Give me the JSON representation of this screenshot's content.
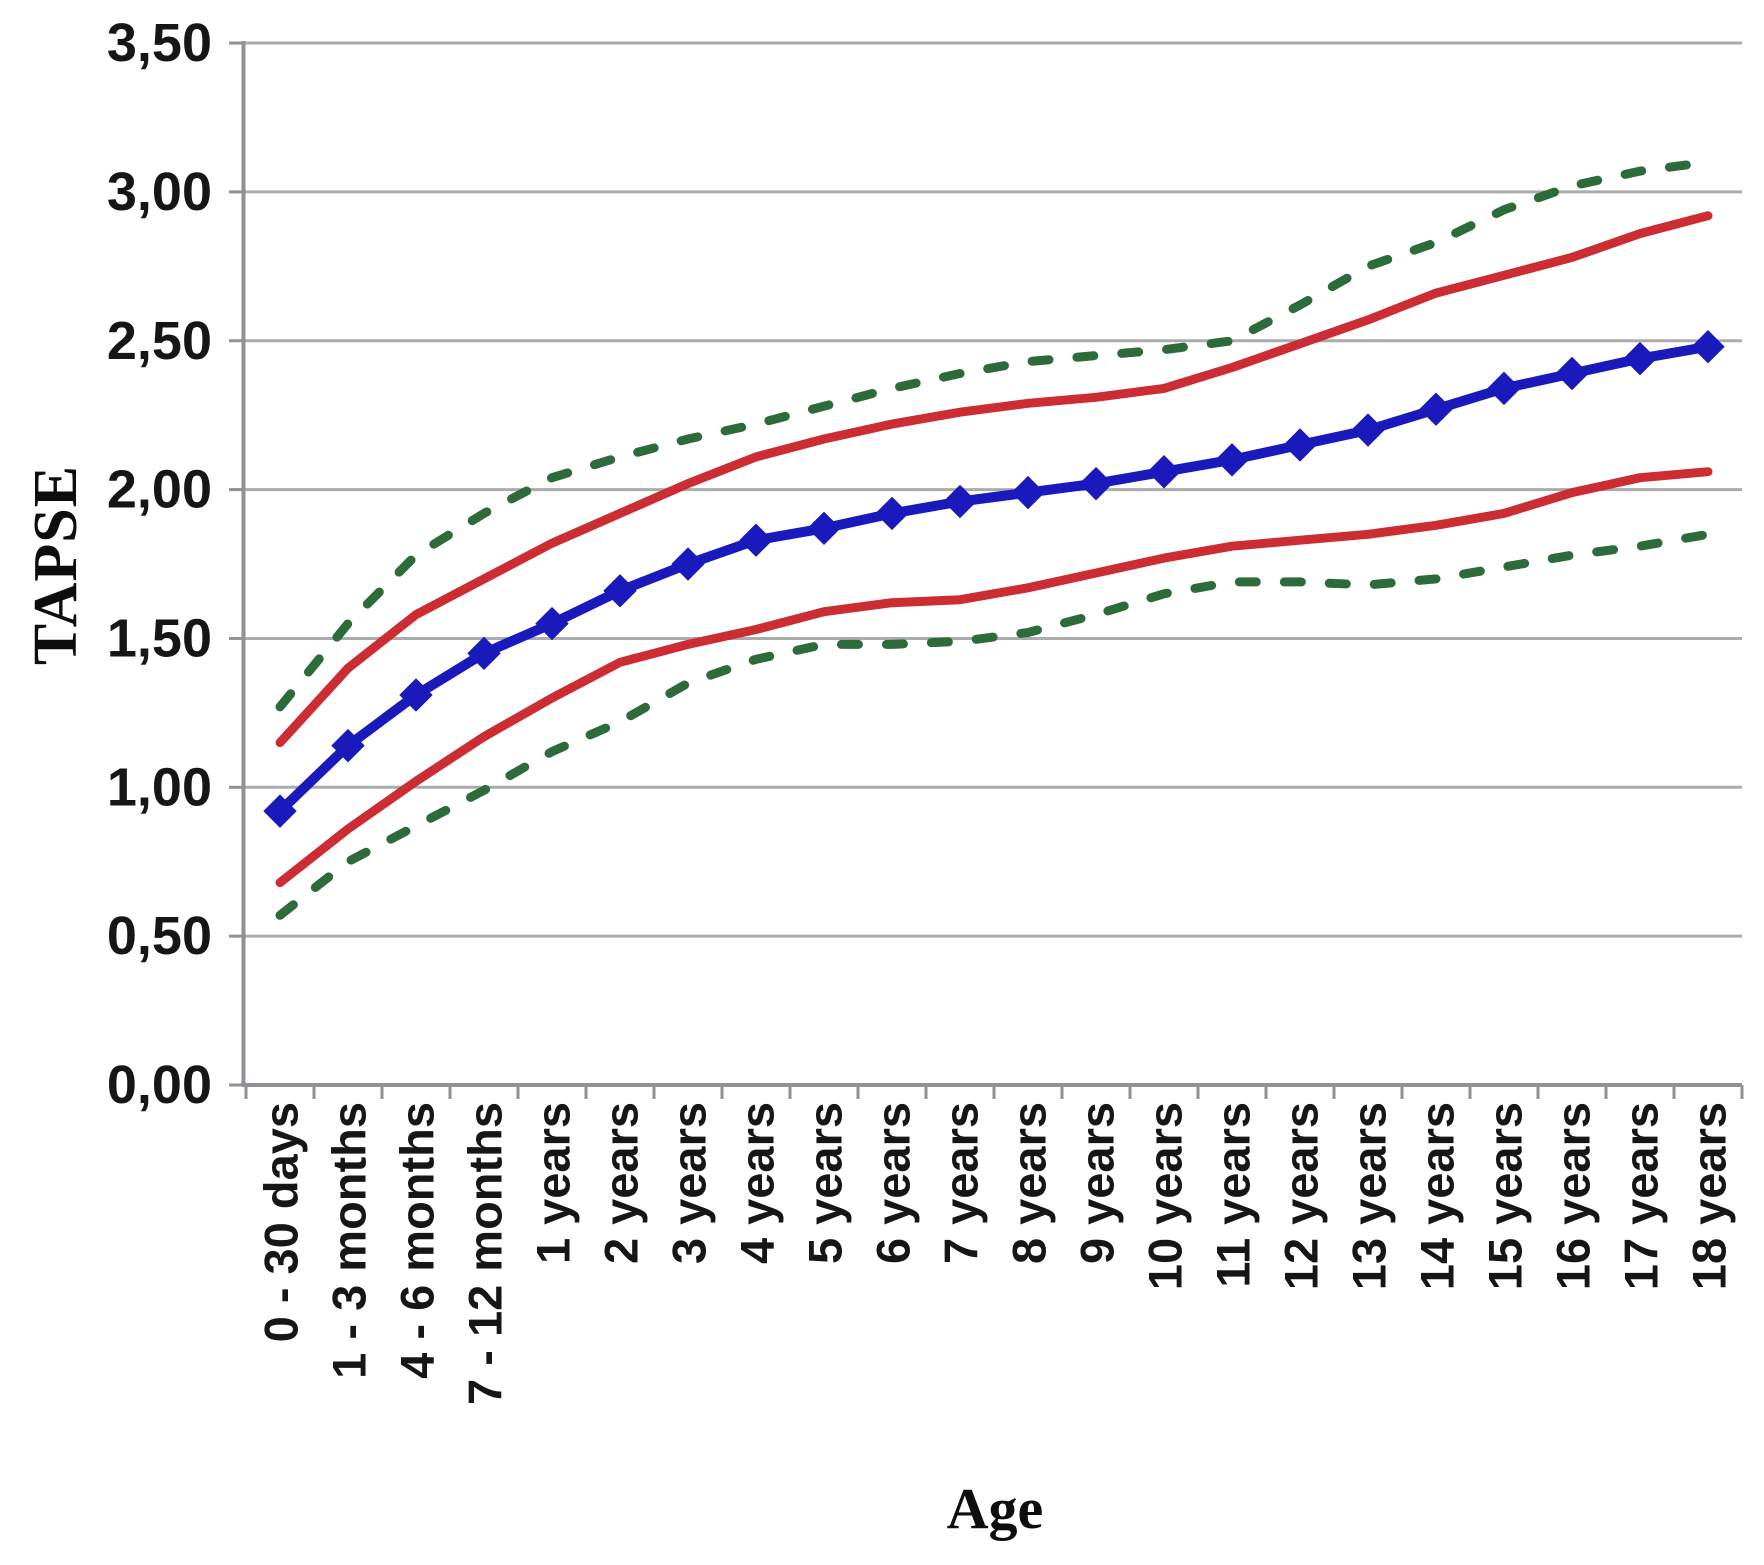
{
  "chart_data": {
    "type": "line",
    "title": "",
    "xlabel": "Age",
    "ylabel": "TAPSE",
    "ylim": [
      0,
      3.5
    ],
    "ytick_step": 0.5,
    "ytick_labels": [
      "0,00",
      "0,50",
      "1,00",
      "1,50",
      "2,00",
      "2,50",
      "3,00",
      "3,50"
    ],
    "grid": "horizontal",
    "legend": "none",
    "decimal_separator": "comma",
    "categories": [
      "0 - 30 days",
      "1 - 3 months",
      "4 - 6 months",
      "7 - 12 months",
      "1 years",
      "2 years",
      "3 years",
      "4 years",
      "5 years",
      "6 years",
      "7 years",
      "8 years",
      "9 years",
      "10 years",
      "11 years",
      "12 years",
      "13 years",
      "14 years",
      "15 years",
      "16 years",
      "17 years",
      "18 years"
    ],
    "series": [
      {
        "name": "upper_dashed",
        "style": "dashed",
        "marker": "none",
        "color": "#2e6b3a",
        "values": [
          1.27,
          1.55,
          1.78,
          1.92,
          2.04,
          2.11,
          2.17,
          2.22,
          2.28,
          2.34,
          2.39,
          2.43,
          2.45,
          2.47,
          2.5,
          2.62,
          2.75,
          2.83,
          2.94,
          3.02,
          3.07,
          3.1
        ]
      },
      {
        "name": "upper_solid",
        "style": "solid",
        "marker": "none",
        "color": "#cc2d33",
        "values": [
          1.15,
          1.4,
          1.58,
          1.7,
          1.82,
          1.92,
          2.02,
          2.11,
          2.17,
          2.22,
          2.26,
          2.29,
          2.31,
          2.34,
          2.41,
          2.49,
          2.57,
          2.66,
          2.72,
          2.78,
          2.86,
          2.92
        ]
      },
      {
        "name": "mean_diamond",
        "style": "solid",
        "marker": "diamond",
        "color": "#1a1abc",
        "values": [
          0.92,
          1.14,
          1.31,
          1.45,
          1.55,
          1.66,
          1.75,
          1.83,
          1.87,
          1.92,
          1.96,
          1.99,
          2.02,
          2.06,
          2.1,
          2.15,
          2.2,
          2.27,
          2.34,
          2.39,
          2.44,
          2.48
        ]
      },
      {
        "name": "lower_solid",
        "style": "solid",
        "marker": "none",
        "color": "#cc2d33",
        "values": [
          0.68,
          0.86,
          1.02,
          1.17,
          1.3,
          1.42,
          1.48,
          1.53,
          1.59,
          1.62,
          1.63,
          1.67,
          1.72,
          1.77,
          1.81,
          1.83,
          1.85,
          1.88,
          1.92,
          1.99,
          2.04,
          2.06
        ]
      },
      {
        "name": "lower_dashed",
        "style": "dashed",
        "marker": "none",
        "color": "#2e6b3a",
        "values": [
          0.57,
          0.75,
          0.87,
          0.99,
          1.12,
          1.22,
          1.35,
          1.43,
          1.48,
          1.48,
          1.49,
          1.52,
          1.58,
          1.65,
          1.69,
          1.69,
          1.68,
          1.7,
          1.74,
          1.78,
          1.81,
          1.85
        ]
      }
    ],
    "colors": {
      "gridline": "#a9abad",
      "axis": "#8f9194",
      "tick": "#8f9194",
      "text": "#161616",
      "background": "#ffffff"
    }
  }
}
